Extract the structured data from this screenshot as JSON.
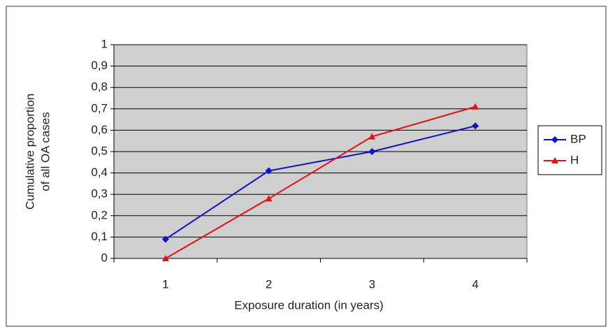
{
  "chart_data": {
    "type": "line",
    "ylabel": [
      "Cumulative proportion",
      "of all OA cases"
    ],
    "xlabel": "Exposure duration (in years)",
    "categories": [
      "1",
      "2",
      "3",
      "4"
    ],
    "series": [
      {
        "name": "BP",
        "color": "#1010c8",
        "marker": "diamond",
        "values": [
          0.09,
          0.41,
          0.5,
          0.62
        ]
      },
      {
        "name": "H",
        "color": "#e81010",
        "marker": "triangle",
        "values": [
          0,
          0.28,
          0.57,
          0.71
        ]
      }
    ],
    "ylim": [
      0,
      1
    ],
    "yticks": [
      0,
      {
        "value": 0.1,
        "label": "0,1"
      },
      {
        "value": 0.2,
        "label": "0,2"
      },
      {
        "value": 0.3,
        "label": "0,3"
      },
      {
        "value": 0.4,
        "label": "0,4"
      },
      {
        "value": 0.5,
        "label": "0,5"
      },
      {
        "value": 0.6,
        "label": "0,6"
      },
      {
        "value": 0.7,
        "label": "0,7"
      },
      {
        "value": 0.8,
        "label": "0,8"
      },
      {
        "value": 0.9,
        "label": "0,9"
      },
      1
    ],
    "grid": true,
    "legend": "right"
  }
}
